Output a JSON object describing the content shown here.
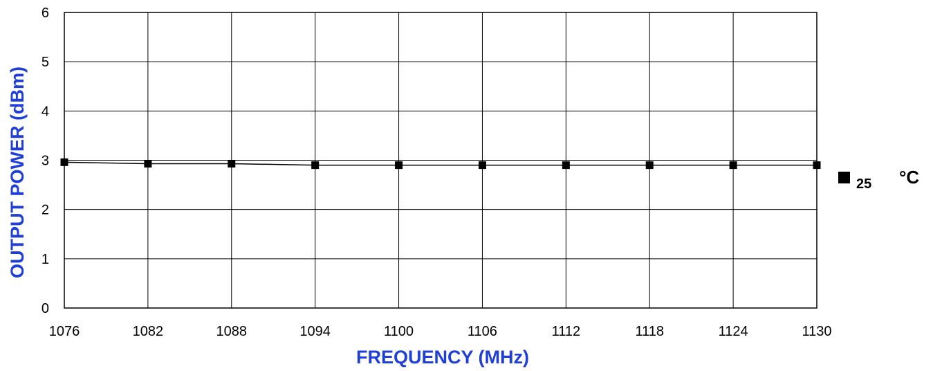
{
  "chart_data": {
    "type": "line",
    "xlabel": "FREQUENCY (MHz)",
    "ylabel": "OUTPUT POWER (dBm)",
    "x": [
      1076,
      1082,
      1088,
      1094,
      1100,
      1106,
      1112,
      1118,
      1124,
      1130
    ],
    "xlim": [
      1076,
      1130
    ],
    "ylim": [
      0,
      6
    ],
    "yticks": [
      "0",
      "1",
      "2",
      "3",
      "4",
      "5",
      "6"
    ],
    "xticks": [
      "1076",
      "1082",
      "1088",
      "1094",
      "1100",
      "1106",
      "1112",
      "1118",
      "1124",
      "1130"
    ],
    "grid": true,
    "legend_position": "right",
    "series": [
      {
        "legend_value": "25",
        "legend_unit": "°C",
        "values": [
          2.96,
          2.93,
          2.93,
          2.9,
          2.9,
          2.9,
          2.9,
          2.9,
          2.9,
          2.9
        ],
        "marker": "square",
        "color": "#000000"
      }
    ],
    "colors": {
      "axis_title": "#1f3fd6",
      "grid": "#000000",
      "line": "#000000"
    }
  }
}
